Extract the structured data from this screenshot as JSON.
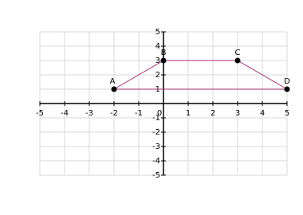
{
  "chart_data": {
    "type": "polygon",
    "labels": [
      "A",
      "B",
      "C",
      "D"
    ],
    "x": [
      -2,
      0,
      3,
      5
    ],
    "values": [
      1,
      3,
      3,
      1
    ],
    "color": "#a0306e",
    "point_color": "#000000",
    "xlim": [
      -5,
      5
    ],
    "ylim": [
      -5,
      5
    ],
    "xticks": [
      -5,
      -4,
      -3,
      -2,
      -1,
      0,
      1,
      2,
      3,
      4,
      5
    ],
    "yticks": [
      -5,
      -4,
      -3,
      -2,
      -1,
      1,
      2,
      3,
      4,
      5
    ],
    "grid": true
  }
}
